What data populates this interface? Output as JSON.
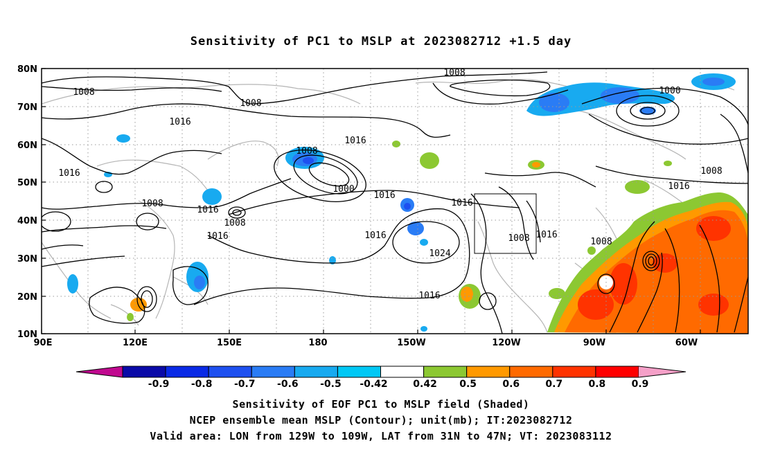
{
  "title": "Sensitivity of PC1 to MSLP at 2023082712 +1.5 day",
  "map": {
    "lon_labels": [
      "90E",
      "120E",
      "150E",
      "180",
      "150W",
      "120W",
      "90W",
      "60W"
    ],
    "lat_labels": [
      "80N",
      "70N",
      "60N",
      "50N",
      "40N",
      "30N",
      "20N",
      "10N"
    ],
    "contour_labels": [
      {
        "text": "1008",
        "near": "Arctic top center"
      },
      {
        "text": "1008",
        "near": "Siberia left"
      },
      {
        "text": "1008",
        "near": "Siberia center"
      },
      {
        "text": "1000",
        "near": "Greenland"
      },
      {
        "text": "1016",
        "near": "Central Siberia"
      },
      {
        "text": "1016",
        "near": "West China"
      },
      {
        "text": "1008",
        "near": "Bering Sea low"
      },
      {
        "text": "1016",
        "near": "North Pacific"
      },
      {
        "text": "1000",
        "near": "Aleutian low"
      },
      {
        "text": "1008",
        "near": "Central Asia"
      },
      {
        "text": "1016",
        "near": "Japan"
      },
      {
        "text": "1008",
        "near": "Kuril low"
      },
      {
        "text": "1016",
        "near": "West Pacific"
      },
      {
        "text": "1016",
        "near": "Northeast Pacific"
      },
      {
        "text": "1016",
        "near": "Central Pacific"
      },
      {
        "text": "1024",
        "near": "Pacific high"
      },
      {
        "text": "1008",
        "near": "US West Coast low"
      },
      {
        "text": "1016",
        "near": "Rockies"
      },
      {
        "text": "1008",
        "near": "Gulf of Mexico"
      },
      {
        "text": "1016",
        "near": "Tropical Pacific"
      },
      {
        "text": "1008",
        "near": "Labrador"
      },
      {
        "text": "1016",
        "near": "Newfoundland"
      }
    ],
    "valid_box": {
      "lon_from": "129W",
      "lon_to": "109W",
      "lat_from": "31N",
      "lat_to": "47N"
    }
  },
  "colorbar": {
    "labels": [
      "-0.9",
      "-0.8",
      "-0.7",
      "-0.6",
      "-0.5",
      "-0.42",
      "0.42",
      "0.5",
      "0.6",
      "0.7",
      "0.8",
      "0.9"
    ],
    "colors": [
      "#c0098f",
      "#0a0aa8",
      "#0a2ae6",
      "#1e50f0",
      "#2a7cf5",
      "#18aaf0",
      "#00c8f5",
      "#ffffff",
      "#8cc832",
      "#ff9900",
      "#ff6a00",
      "#ff3300",
      "#ff0000",
      "#f5a0c8"
    ]
  },
  "captions": [
    "Sensitivity of EOF PC1 to MSLP field (Shaded)",
    "NCEP ensemble mean MSLP (Contour); unit(mb); IT:2023082712",
    "Valid area: LON from 129W to 109W, LAT from 31N to 47N; VT: 2023083112"
  ]
}
